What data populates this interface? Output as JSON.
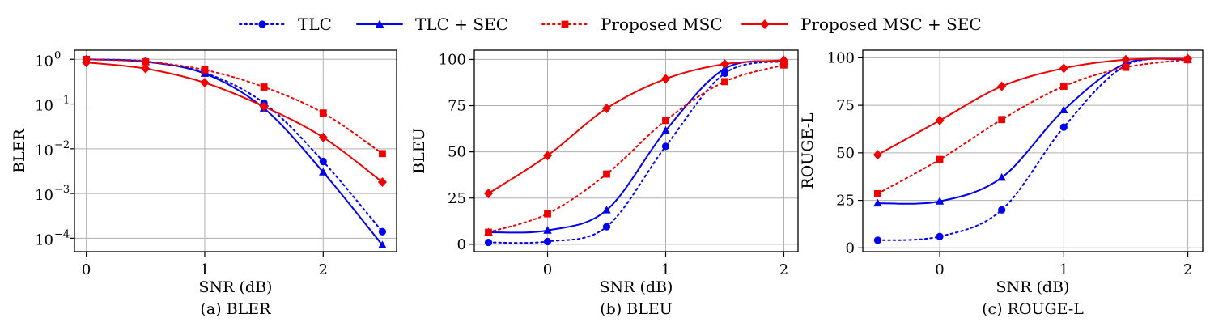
{
  "legend": {
    "entries": [
      {
        "label": "TLC",
        "color": "#0000ee",
        "dash": "dotted",
        "marker": "circle"
      },
      {
        "label": "TLC + SEC",
        "color": "#0000ee",
        "dash": "solid",
        "marker": "triangle"
      },
      {
        "label": "Proposed MSC",
        "color": "#ee0000",
        "dash": "dotted",
        "marker": "square"
      },
      {
        "label": "Proposed MSC + SEC",
        "color": "#ee0000",
        "dash": "solid",
        "marker": "diamond"
      }
    ]
  },
  "chart_data": [
    {
      "type": "line",
      "caption": "(a) BLER",
      "xlabel": "SNR (dB)",
      "ylabel": "BLER",
      "yscale": "log",
      "xlim": [
        -0.1,
        2.62
      ],
      "ylim": [
        5e-05,
        1.6
      ],
      "xticks": [
        0,
        1,
        2
      ],
      "xtick_labels": [
        "0",
        "1",
        "2"
      ],
      "yticks": [
        1,
        0.1,
        0.01,
        0.001,
        0.0001
      ],
      "ytick_labels": [
        {
          "base": "10",
          "exp": "0"
        },
        {
          "base": "10",
          "exp": "−1"
        },
        {
          "base": "10",
          "exp": "−2"
        },
        {
          "base": "10",
          "exp": "−3"
        },
        {
          "base": "10",
          "exp": "−4"
        }
      ],
      "grid": true,
      "series": [
        {
          "name": "TLC",
          "x": [
            0,
            0.5,
            1,
            1.5,
            2,
            2.5
          ],
          "y": [
            1.0,
            0.9,
            0.5,
            0.105,
            0.0052,
            0.00014
          ]
        },
        {
          "name": "TLC + SEC",
          "x": [
            0,
            0.5,
            1,
            1.5,
            2,
            2.5
          ],
          "y": [
            1.0,
            0.88,
            0.48,
            0.08,
            0.003,
            7e-05
          ]
        },
        {
          "name": "Proposed MSC",
          "x": [
            0,
            0.5,
            1,
            1.5,
            2,
            2.5
          ],
          "y": [
            1.0,
            0.88,
            0.58,
            0.24,
            0.063,
            0.0078
          ]
        },
        {
          "name": "Proposed MSC + SEC",
          "x": [
            0,
            0.5,
            1,
            1.5,
            2,
            2.5
          ],
          "y": [
            0.85,
            0.62,
            0.3,
            0.088,
            0.018,
            0.0018
          ]
        }
      ]
    },
    {
      "type": "line",
      "caption": "(b) BLEU",
      "xlabel": "SNR (dB)",
      "ylabel": "BLEU",
      "yscale": "linear",
      "xlim": [
        -0.62,
        2.12
      ],
      "ylim": [
        -4,
        105
      ],
      "xticks": [
        0,
        1,
        2
      ],
      "xtick_labels": [
        "0",
        "1",
        "2"
      ],
      "yticks": [
        0,
        25,
        50,
        75,
        100
      ],
      "ytick_labels": [
        "0",
        "25",
        "50",
        "75",
        "100"
      ],
      "grid": true,
      "series": [
        {
          "name": "TLC",
          "x": [
            -0.5,
            0,
            0.5,
            1,
            1.5,
            2
          ],
          "y": [
            1,
            1.5,
            9.5,
            53,
            92.5,
            99
          ]
        },
        {
          "name": "TLC + SEC",
          "x": [
            -0.5,
            0,
            0.5,
            1,
            1.5,
            2
          ],
          "y": [
            6.5,
            7.5,
            18.5,
            61.5,
            95,
            99
          ]
        },
        {
          "name": "Proposed MSC",
          "x": [
            -0.5,
            0,
            0.5,
            1,
            1.5,
            2
          ],
          "y": [
            6.5,
            16.5,
            38,
            67,
            88,
            97
          ]
        },
        {
          "name": "Proposed MSC + SEC",
          "x": [
            -0.5,
            0,
            0.5,
            1,
            1.5,
            2
          ],
          "y": [
            27.5,
            48,
            73.5,
            89.5,
            97.5,
            99.5
          ]
        }
      ]
    },
    {
      "type": "line",
      "caption": "(c) ROUGE-L",
      "xlabel": "SNR (dB)",
      "ylabel": "ROUGE-L",
      "yscale": "linear",
      "xlim": [
        -0.62,
        2.12
      ],
      "ylim": [
        -2,
        104
      ],
      "xticks": [
        0,
        1,
        2
      ],
      "xtick_labels": [
        "0",
        "1",
        "2"
      ],
      "yticks": [
        0,
        25,
        50,
        75,
        100
      ],
      "ytick_labels": [
        "0",
        "25",
        "50",
        "75",
        "100"
      ],
      "grid": true,
      "series": [
        {
          "name": "TLC",
          "x": [
            -0.5,
            0,
            0.5,
            1,
            1.5,
            2
          ],
          "y": [
            4,
            6,
            20,
            63.5,
            96,
            99
          ]
        },
        {
          "name": "TLC + SEC",
          "x": [
            -0.5,
            0,
            0.5,
            1,
            1.5,
            2
          ],
          "y": [
            23.5,
            24.5,
            37,
            72.5,
            97,
            99
          ]
        },
        {
          "name": "Proposed MSC",
          "x": [
            -0.5,
            0,
            0.5,
            1,
            1.5,
            2
          ],
          "y": [
            28.5,
            46.5,
            67.5,
            85,
            95,
            99
          ]
        },
        {
          "name": "Proposed MSC + SEC",
          "x": [
            -0.5,
            0,
            0.5,
            1,
            1.5,
            2
          ],
          "y": [
            49,
            67,
            85,
            94.5,
            99,
            99.5
          ]
        }
      ]
    }
  ]
}
